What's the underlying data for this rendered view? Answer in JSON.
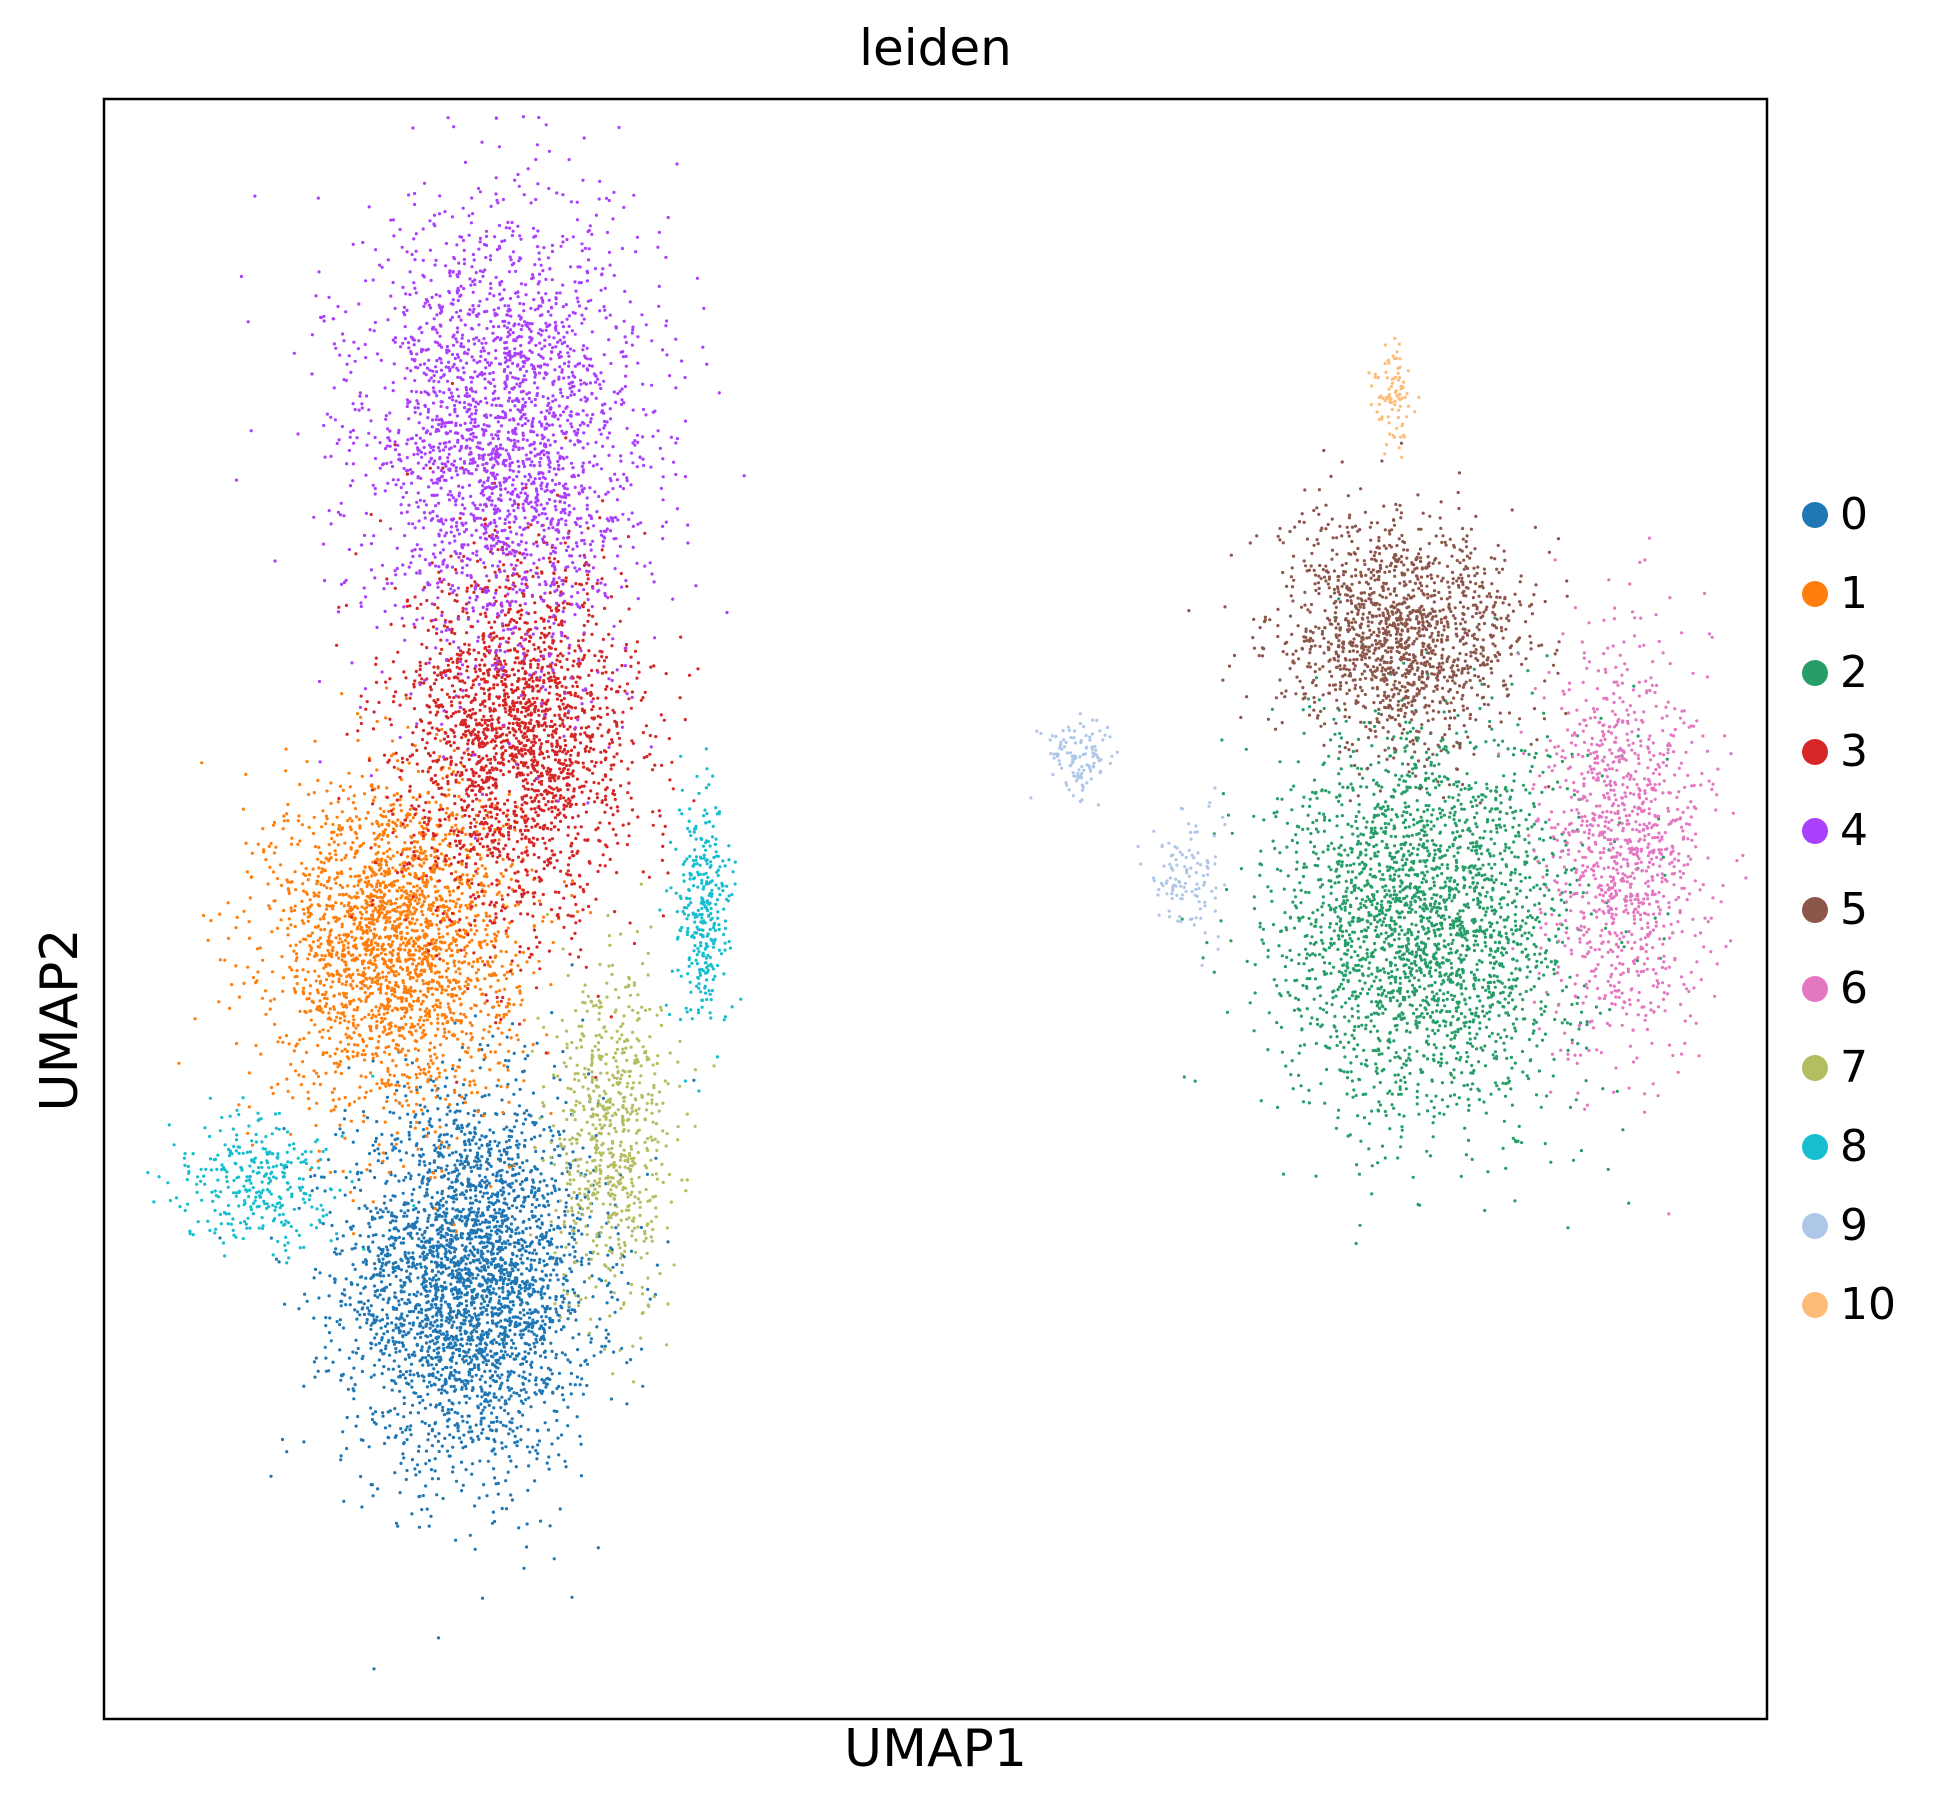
{
  "chart_data": {
    "type": "scatter",
    "title": "leiden",
    "xlabel": "UMAP1",
    "ylabel": "UMAP2",
    "xlim": [
      0,
      10
    ],
    "ylim": [
      0,
      10
    ],
    "grid": false,
    "ticks": false,
    "legend": {
      "placement": "right",
      "marker": "circle"
    },
    "series": [
      {
        "name": "0",
        "color": "#1f77b4",
        "points": 3200,
        "regions": [
          {
            "cx": 2.2,
            "cy": 2.7,
            "sx": 0.62,
            "sy": 0.95
          }
        ]
      },
      {
        "name": "1",
        "color": "#ff7f0e",
        "points": 2400,
        "regions": [
          {
            "cx": 1.75,
            "cy": 4.8,
            "sx": 0.6,
            "sy": 0.85
          }
        ]
      },
      {
        "name": "2",
        "color": "#279e68",
        "points": 2600,
        "regions": [
          {
            "cx": 7.95,
            "cy": 4.9,
            "sx": 0.75,
            "sy": 1.0
          }
        ]
      },
      {
        "name": "3",
        "color": "#d62728",
        "points": 2200,
        "regions": [
          {
            "cx": 2.5,
            "cy": 6.05,
            "sx": 0.58,
            "sy": 0.95
          }
        ]
      },
      {
        "name": "4",
        "color": "#aa40fc",
        "points": 2500,
        "regions": [
          {
            "cx": 2.4,
            "cy": 7.9,
            "sx": 0.72,
            "sy": 1.2
          }
        ]
      },
      {
        "name": "5",
        "color": "#8c564b",
        "points": 1500,
        "regions": [
          {
            "cx": 7.8,
            "cy": 6.7,
            "sx": 0.6,
            "sy": 0.58
          }
        ]
      },
      {
        "name": "6",
        "color": "#e377c2",
        "points": 1100,
        "regions": [
          {
            "cx": 9.15,
            "cy": 5.4,
            "sx": 0.42,
            "sy": 1.05
          }
        ]
      },
      {
        "name": "7",
        "color": "#b5bd61",
        "points": 700,
        "regions": [
          {
            "cx": 3.05,
            "cy": 3.6,
            "sx": 0.3,
            "sy": 0.85
          }
        ]
      },
      {
        "name": "8",
        "color": "#17becf",
        "points": 650,
        "regions": [
          {
            "cx": 0.9,
            "cy": 3.3,
            "sx": 0.38,
            "sy": 0.35
          },
          {
            "cx": 3.6,
            "cy": 5.0,
            "sx": 0.14,
            "sy": 0.6
          }
        ]
      },
      {
        "name": "9",
        "color": "#aec7e8",
        "points": 230,
        "regions": [
          {
            "cx": 5.85,
            "cy": 5.95,
            "sx": 0.17,
            "sy": 0.2
          },
          {
            "cx": 6.5,
            "cy": 5.2,
            "sx": 0.17,
            "sy": 0.32
          }
        ]
      },
      {
        "name": "10",
        "color": "#ffbb78",
        "points": 90,
        "regions": [
          {
            "cx": 7.75,
            "cy": 8.15,
            "sx": 0.1,
            "sy": 0.28
          }
        ]
      }
    ]
  }
}
